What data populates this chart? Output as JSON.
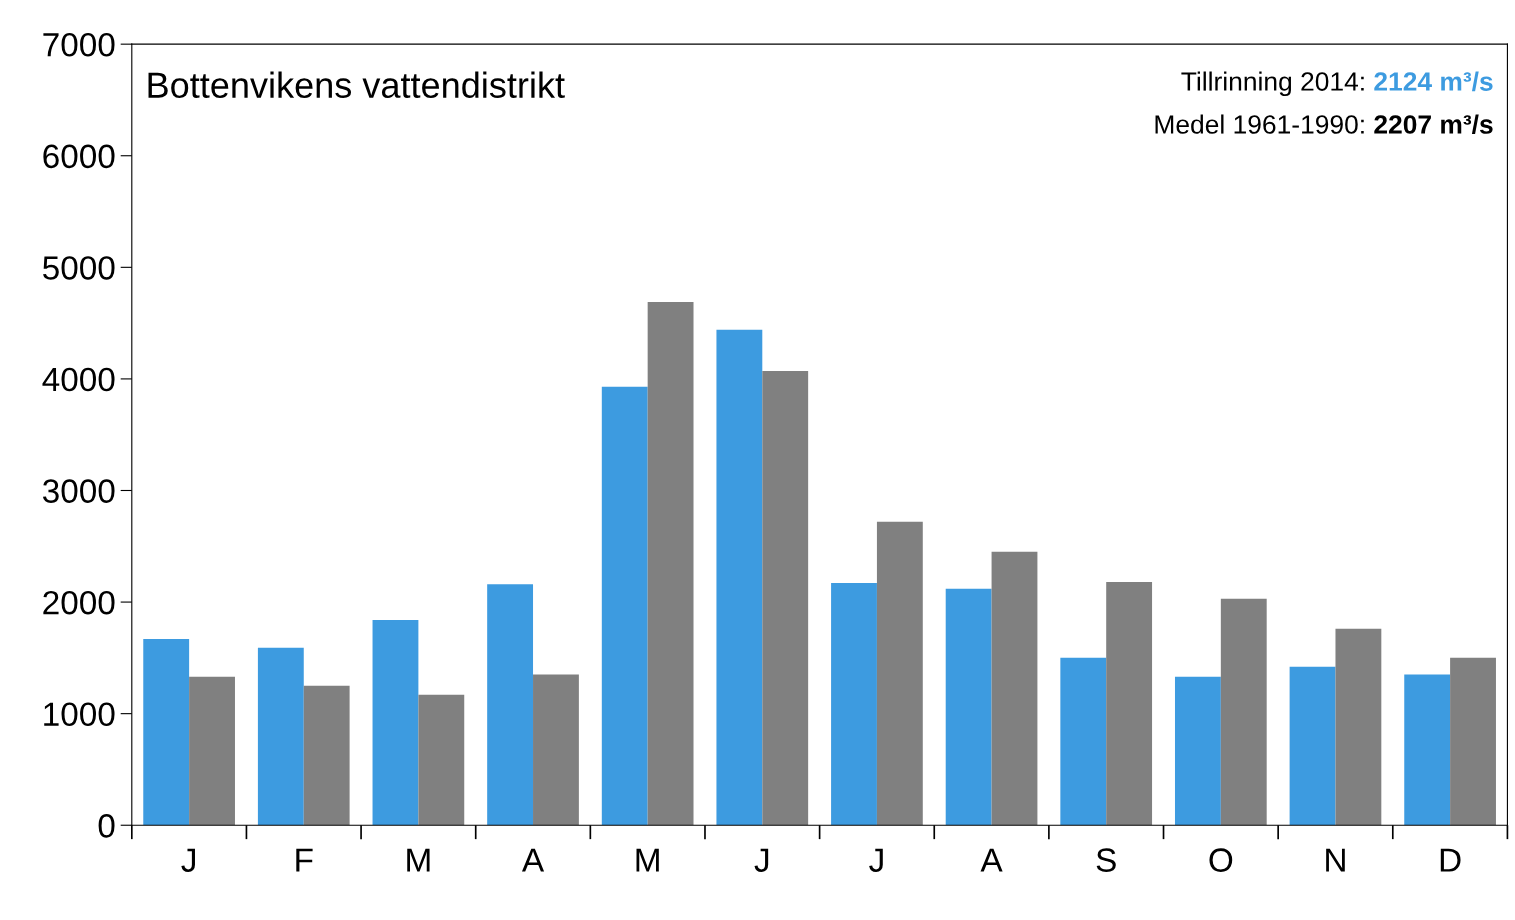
{
  "chart_data": {
    "type": "bar",
    "title": "Bottenvikens vattendistrikt",
    "categories": [
      "J",
      "F",
      "M",
      "A",
      "M",
      "J",
      "J",
      "A",
      "S",
      "O",
      "N",
      "D"
    ],
    "series": [
      {
        "color": "#3d9be0",
        "values": [
          1670,
          1590,
          1840,
          2160,
          3930,
          4440,
          2170,
          2120,
          1500,
          1330,
          1420,
          1350
        ]
      },
      {
        "color": "#808080",
        "values": [
          1330,
          1250,
          1170,
          1350,
          4690,
          4070,
          2720,
          2450,
          2180,
          2030,
          1760,
          1500
        ]
      }
    ],
    "annotations": [
      "Tillrinning 2014: 2124 m³/s",
      "Medel 1961-1990: 2207 m³/s"
    ],
    "ylim": [
      0,
      7000
    ],
    "yticks": [
      0,
      1000,
      2000,
      3000,
      4000,
      5000,
      6000,
      7000
    ],
    "grid": false,
    "legend": false
  }
}
